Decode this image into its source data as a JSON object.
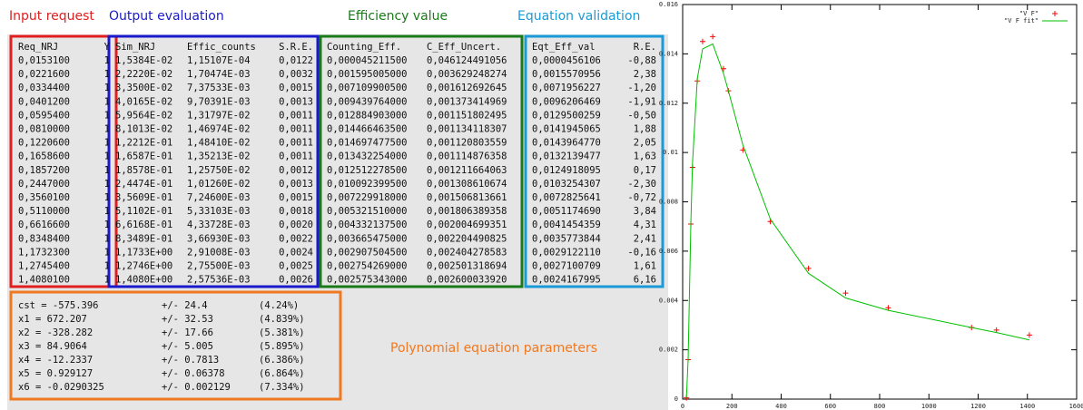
{
  "sections": {
    "input": "Input request",
    "output": "Output evaluation",
    "efficiency": "Efficiency value",
    "validation": "Equation validation",
    "parameters": "Polynomial equation parameters"
  },
  "input_table": {
    "columns": [
      "Req_NRJ",
      "Y"
    ],
    "rows": [
      [
        "0,0153100",
        "1"
      ],
      [
        "0,0221600",
        "1"
      ],
      [
        "0,0334400",
        "1"
      ],
      [
        "0,0401200",
        "1"
      ],
      [
        "0,0595400",
        "1"
      ],
      [
        "0,0810000",
        "1"
      ],
      [
        "0,1220600",
        "1"
      ],
      [
        "0,1658600",
        "1"
      ],
      [
        "0,1857200",
        "1"
      ],
      [
        "0,2447000",
        "1"
      ],
      [
        "0,3560100",
        "1"
      ],
      [
        "0,5110000",
        "1"
      ],
      [
        "0,6616600",
        "1"
      ],
      [
        "0,8348400",
        "1"
      ],
      [
        "1,1732300",
        "1"
      ],
      [
        "1,2745400",
        "1"
      ],
      [
        "1,4080100",
        "1"
      ]
    ]
  },
  "output_table": {
    "columns": [
      "Sim_NRJ",
      "Effic_counts",
      "S.R.E."
    ],
    "rows": [
      [
        "1,5384E-02",
        "1,15107E-04",
        "0,0122"
      ],
      [
        "2,2220E-02",
        "1,70474E-03",
        "0,0032"
      ],
      [
        "3,3500E-02",
        "7,37533E-03",
        "0,0015"
      ],
      [
        "4,0165E-02",
        "9,70391E-03",
        "0,0013"
      ],
      [
        "5,9564E-02",
        "1,31797E-02",
        "0,0011"
      ],
      [
        "8,1013E-02",
        "1,46974E-02",
        "0,0011"
      ],
      [
        "1,2212E-01",
        "1,48410E-02",
        "0,0011"
      ],
      [
        "1,6587E-01",
        "1,35213E-02",
        "0,0011"
      ],
      [
        "1,8578E-01",
        "1,25750E-02",
        "0,0012"
      ],
      [
        "2,4474E-01",
        "1,01260E-02",
        "0,0013"
      ],
      [
        "3,5609E-01",
        "7,24600E-03",
        "0,0015"
      ],
      [
        "5,1102E-01",
        "5,33103E-03",
        "0,0018"
      ],
      [
        "6,6168E-01",
        "4,33728E-03",
        "0,0020"
      ],
      [
        "8,3489E-01",
        "3,66930E-03",
        "0,0022"
      ],
      [
        "1,1733E+00",
        "2,91008E-03",
        "0,0024"
      ],
      [
        "1,2746E+00",
        "2,75500E-03",
        "0,0025"
      ],
      [
        "1,4080E+00",
        "2,57536E-03",
        "0,0026"
      ]
    ]
  },
  "efficiency_table": {
    "columns": [
      "Counting_Eff.",
      "C_Eff_Uncert."
    ],
    "rows": [
      [
        "0,000045211500",
        "0,046124491056"
      ],
      [
        "0,001595005000",
        "0,003629248274"
      ],
      [
        "0,007109900500",
        "0,001612692645"
      ],
      [
        "0,009439764000",
        "0,001373414969"
      ],
      [
        "0,012884903000",
        "0,001151802495"
      ],
      [
        "0,014466463500",
        "0,001134118307"
      ],
      [
        "0,014697477500",
        "0,001120803559"
      ],
      [
        "0,013432254000",
        "0,001114876358"
      ],
      [
        "0,012512278500",
        "0,001211664063"
      ],
      [
        "0,010092399500",
        "0,001308610674"
      ],
      [
        "0,007229918000",
        "0,001506813661"
      ],
      [
        "0,005321510000",
        "0,001806389358"
      ],
      [
        "0,004332137500",
        "0,002004699351"
      ],
      [
        "0,003665475000",
        "0,002204490825"
      ],
      [
        "0,002907504500",
        "0,002404278583"
      ],
      [
        "0,002754269000",
        "0,002501318694"
      ],
      [
        "0,002575343000",
        "0,002600033920"
      ]
    ]
  },
  "validation_table": {
    "columns": [
      "Eqt_Eff_val",
      "R.E."
    ],
    "rows": [
      [
        "0,0000456106",
        "-0,88"
      ],
      [
        "0,0015570956",
        "2,38"
      ],
      [
        "0,0071956227",
        "-1,20"
      ],
      [
        "0,0096206469",
        "-1,91"
      ],
      [
        "0,0129500259",
        "-0,50"
      ],
      [
        "0,0141945065",
        "1,88"
      ],
      [
        "0,0143964770",
        "2,05"
      ],
      [
        "0,0132139477",
        "1,63"
      ],
      [
        "0,0124918095",
        "0,17"
      ],
      [
        "0,0103254307",
        "-2,30"
      ],
      [
        "0,0072825641",
        "-0,72"
      ],
      [
        "0,0051174690",
        "3,84"
      ],
      [
        "0,0041454359",
        "4,31"
      ],
      [
        "0,0035773844",
        "2,41"
      ],
      [
        "0,0029122110",
        "-0,16"
      ],
      [
        "0,0027100709",
        "1,61"
      ],
      [
        "0,0024167995",
        "6,16"
      ]
    ]
  },
  "parameters_table": {
    "rows": [
      [
        "cst = -575.396",
        "+/- 24.4",
        "(4.24%)"
      ],
      [
        "x1 = 672.207",
        "+/- 32.53",
        "(4.839%)"
      ],
      [
        "x2 = -328.282",
        "+/- 17.66",
        "(5.381%)"
      ],
      [
        "x3 = 84.9064",
        "+/- 5.005",
        "(5.895%)"
      ],
      [
        "x4 = -12.2337",
        "+/- 0.7813",
        "(6.386%)"
      ],
      [
        "x5 = 0.929127",
        "+/- 0.06378",
        "(6.864%)"
      ],
      [
        "x6 = -0.0290325",
        "+/- 0.002129",
        "(7.334%)"
      ]
    ]
  },
  "chart_data": {
    "type": "scatter",
    "x": [
      15.3,
      22.2,
      33.4,
      40.1,
      59.5,
      81,
      122.1,
      165.9,
      185.7,
      244.7,
      356,
      511,
      661.7,
      834.8,
      1173.2,
      1274.5,
      1408
    ],
    "series": [
      {
        "name": "\"V F\"",
        "color": "#ff0000",
        "style": "points",
        "values": [
          5e-05,
          0.0016,
          0.0071,
          0.0094,
          0.0129,
          0.0145,
          0.0147,
          0.0134,
          0.0125,
          0.0101,
          0.0072,
          0.0053,
          0.0043,
          0.0037,
          0.0029,
          0.0028,
          0.0026
        ]
      },
      {
        "name": "\"V F fit\"",
        "color": "#00c000",
        "style": "lines",
        "values": [
          5e-05,
          0.0016,
          0.0072,
          0.0096,
          0.013,
          0.0142,
          0.0144,
          0.0132,
          0.0125,
          0.0103,
          0.0073,
          0.0051,
          0.0041,
          0.0036,
          0.0029,
          0.0027,
          0.0024
        ]
      }
    ],
    "xlim": [
      0,
      1600
    ],
    "xticks": [
      0,
      200,
      400,
      600,
      800,
      1000,
      1200,
      1400,
      1600
    ],
    "ylim": [
      0,
      0.016
    ],
    "yticks": [
      0,
      0.002,
      0.004,
      0.006,
      0.008,
      0.01,
      0.012,
      0.014,
      0.016
    ],
    "legend": "upper right"
  }
}
